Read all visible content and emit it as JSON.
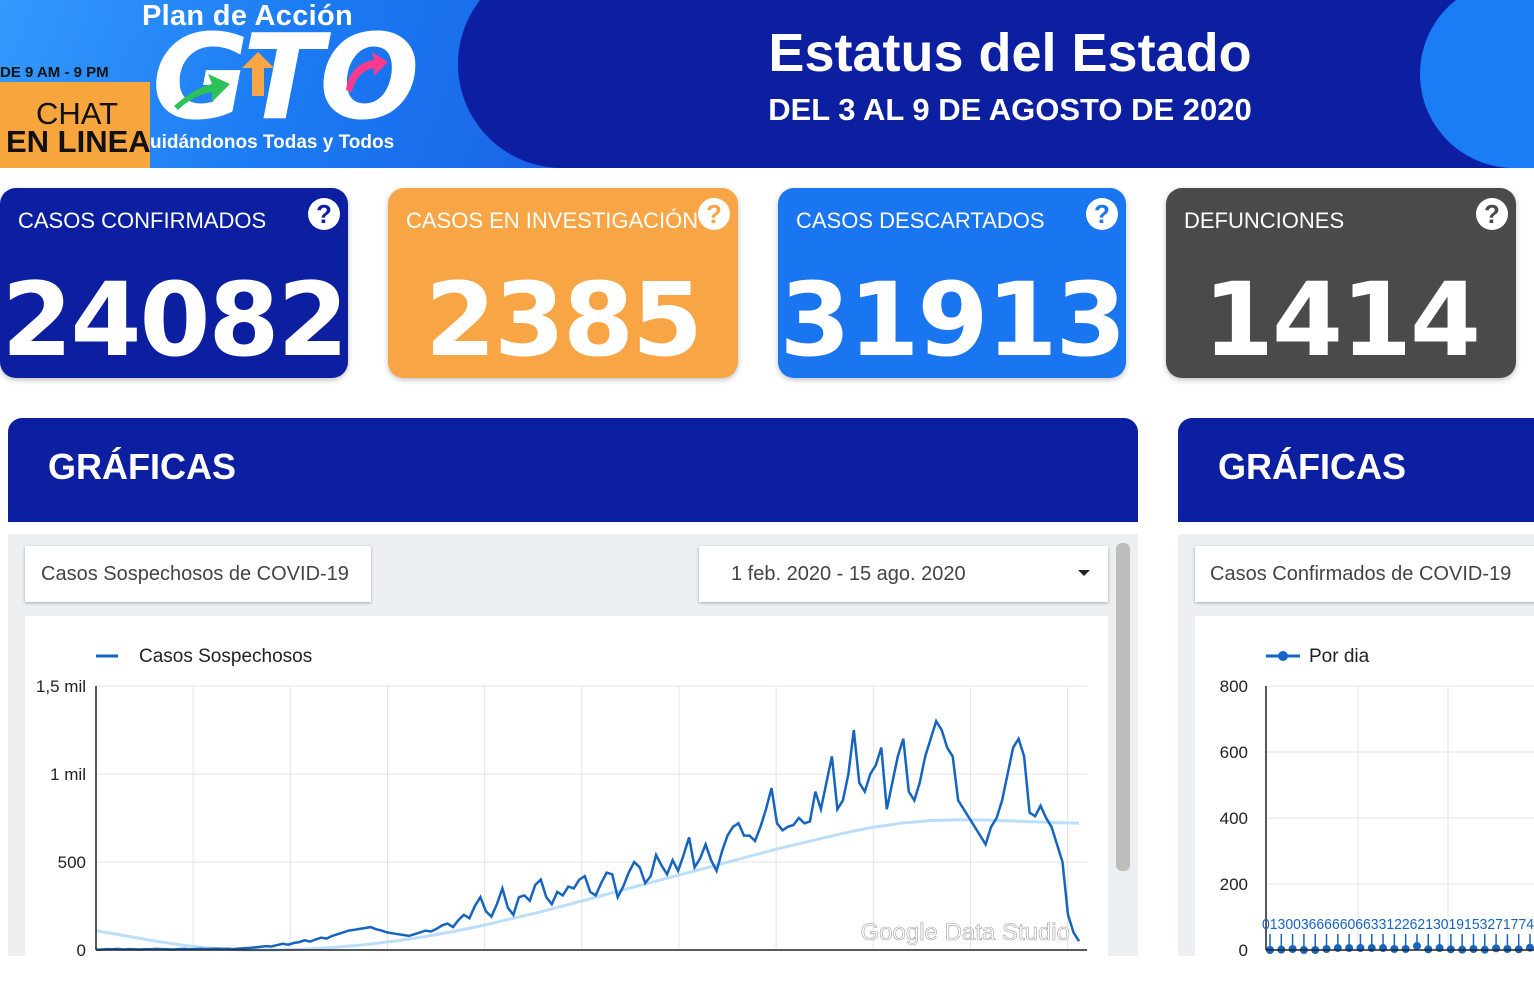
{
  "header": {
    "logo_top": "Plan de Acción",
    "logo_main": "GTO",
    "logo_sub": "uidándonos Todas y Todos",
    "chat_hours": "DE 9 AM - 9 PM",
    "chat_line1": "CHAT",
    "chat_line2": "EN LINEA",
    "title": "Estatus del Estado",
    "subtitle": "DEL 3 AL 9 DE AGOSTO DE 2020"
  },
  "cards": [
    {
      "label": "CASOS CONFIRMADOS",
      "value": "24082",
      "color": "#0b1fa0"
    },
    {
      "label": "CASOS EN INVESTIGACIÓN",
      "value": "2385",
      "color": "#f8a545"
    },
    {
      "label": "CASOS DESCARTADOS",
      "value": "31913",
      "color": "#1a75f0"
    },
    {
      "label": "DEFUNCIONES",
      "value": "1414",
      "color": "#4a4a4a"
    }
  ],
  "help_glyph": "?",
  "sections": {
    "left_title": "GRÁFICAS",
    "right_title": "GRÁFICAS"
  },
  "left_panel": {
    "metric_chip": "Casos Sospechosos de COVID-19",
    "date_range": "1 feb. 2020 - 15 ago. 2020",
    "legend": "Casos Sospechosos",
    "watermark": "Google Data Studio"
  },
  "right_panel": {
    "metric_chip": "Casos Confirmados de COVID-19",
    "legend": "Por dia"
  },
  "colors": {
    "navy": "#0b1fa0",
    "line": "#1565c0",
    "trend": "#bbdefb"
  },
  "chart_data": [
    {
      "type": "line",
      "title": "Casos Sospechosos de COVID-19",
      "xlabel": "",
      "ylabel": "",
      "ylim": [
        0,
        1500
      ],
      "yticks": [
        "0",
        "500",
        "1 mil",
        "1,5 mil"
      ],
      "ytick_values": [
        0,
        500,
        1000,
        1500
      ],
      "grid": true,
      "legend_position": "top-left",
      "x_range": [
        "2020-02-01",
        "2020-08-15"
      ],
      "series": [
        {
          "name": "Casos Sospechosos",
          "values": [
            2,
            3,
            5,
            4,
            6,
            3,
            5,
            4,
            3,
            5,
            4,
            6,
            5,
            4,
            3,
            5,
            6,
            4,
            5,
            7,
            5,
            6,
            8,
            6,
            7,
            5,
            8,
            10,
            12,
            15,
            18,
            22,
            20,
            28,
            35,
            30,
            40,
            45,
            55,
            48,
            60,
            70,
            65,
            80,
            90,
            100,
            110,
            115,
            120,
            125,
            130,
            118,
            110,
            100,
            95,
            90,
            85,
            80,
            90,
            100,
            110,
            105,
            120,
            140,
            150,
            130,
            170,
            200,
            180,
            250,
            300,
            220,
            190,
            260,
            350,
            240,
            200,
            300,
            310,
            280,
            370,
            400,
            300,
            260,
            330,
            310,
            360,
            350,
            400,
            420,
            330,
            310,
            380,
            440,
            430,
            300,
            360,
            440,
            500,
            470,
            380,
            420,
            540,
            480,
            430,
            510,
            450,
            540,
            640,
            470,
            520,
            600,
            510,
            450,
            560,
            650,
            700,
            720,
            650,
            650,
            620,
            700,
            800,
            920,
            720,
            680,
            700,
            710,
            750,
            720,
            730,
            900,
            800,
            950,
            1100,
            800,
            850,
            1000,
            1250,
            950,
            900,
            1000,
            1050,
            1150,
            800,
            950,
            1100,
            1200,
            900,
            850,
            950,
            1100,
            1200,
            1300,
            1250,
            1150,
            1100,
            850,
            800,
            750,
            700,
            650,
            600,
            700,
            750,
            850,
            1000,
            1150,
            1200,
            1100,
            780,
            760,
            820,
            750,
            700,
            600,
            500,
            200,
            100,
            50
          ],
          "color": "#1565c0"
        },
        {
          "name": "trend",
          "values": [
            110,
            80,
            50,
            25,
            8,
            0,
            0,
            5,
            15,
            30,
            50,
            75,
            105,
            140,
            180,
            220,
            265,
            310,
            355,
            400,
            445,
            490,
            535,
            580,
            620,
            660,
            695,
            720,
            735,
            740,
            738,
            732,
            725,
            720
          ],
          "color": "#bbdefb"
        }
      ],
      "watermark": "Google Data Studio"
    },
    {
      "type": "line",
      "title": "Casos Confirmados de COVID-19",
      "ylim": [
        0,
        800
      ],
      "yticks": [
        "0",
        "200",
        "400",
        "600",
        "800"
      ],
      "ytick_values": [
        0,
        200,
        400,
        600,
        800
      ],
      "grid": true,
      "legend_position": "top-left",
      "series": [
        {
          "name": "Por dia",
          "values": [
            0,
            1,
            3,
            0,
            0,
            3,
            6,
            6,
            6,
            6,
            6,
            3,
            3,
            12,
            2,
            6,
            2,
            1,
            3,
            1,
            5,
            3,
            2,
            7
          ]
        }
      ],
      "data_labels": "01300366666066331226213019153271774"
    }
  ]
}
